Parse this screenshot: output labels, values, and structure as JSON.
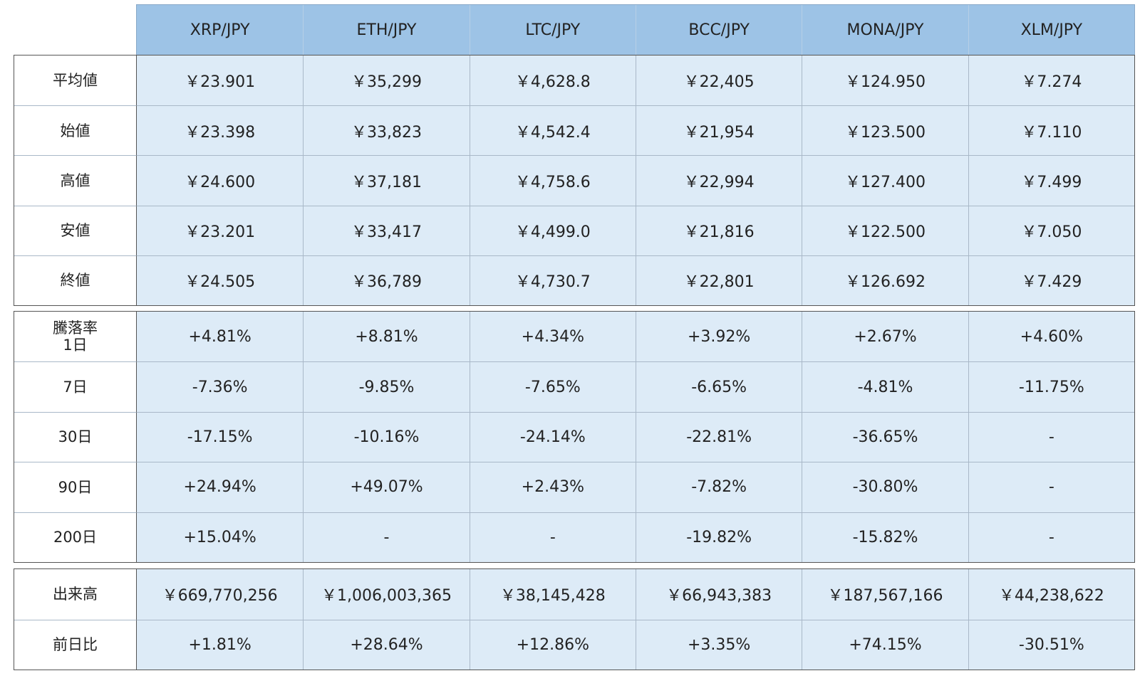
{
  "columns": [
    "XRP/JPY",
    "ETH/JPY",
    "LTC/JPY",
    "BCC/JPY",
    "MONA/JPY",
    "XLM/JPY"
  ],
  "prices": [
    {
      "label": "平均値",
      "values": [
        "￥23.901",
        "￥35,299",
        "￥4,628.8",
        "￥22,405",
        "￥124.950",
        "￥7.274"
      ]
    },
    {
      "label": "始値",
      "values": [
        "￥23.398",
        "￥33,823",
        "￥4,542.4",
        "￥21,954",
        "￥123.500",
        "￥7.110"
      ]
    },
    {
      "label": "高値",
      "values": [
        "￥24.600",
        "￥37,181",
        "￥4,758.6",
        "￥22,994",
        "￥127.400",
        "￥7.499"
      ]
    },
    {
      "label": "安値",
      "values": [
        "￥23.201",
        "￥33,417",
        "￥4,499.0",
        "￥21,816",
        "￥122.500",
        "￥7.050"
      ]
    },
    {
      "label": "終値",
      "values": [
        "￥24.505",
        "￥36,789",
        "￥4,730.7",
        "￥22,801",
        "￥126.692",
        "￥7.429"
      ]
    }
  ],
  "changes": [
    {
      "label": "騰落率\n1日",
      "values": [
        "+4.81%",
        "+8.81%",
        "+4.34%",
        "+3.92%",
        "+2.67%",
        "+4.60%"
      ]
    },
    {
      "label": "7日",
      "values": [
        "-7.36%",
        "-9.85%",
        "-7.65%",
        "-6.65%",
        "-4.81%",
        "-11.75%"
      ]
    },
    {
      "label": "30日",
      "values": [
        "-17.15%",
        "-10.16%",
        "-24.14%",
        "-22.81%",
        "-36.65%",
        "-"
      ]
    },
    {
      "label": "90日",
      "values": [
        "+24.94%",
        "+49.07%",
        "+2.43%",
        "-7.82%",
        "-30.80%",
        "-"
      ]
    },
    {
      "label": "200日",
      "values": [
        "+15.04%",
        "-",
        "-",
        "-19.82%",
        "-15.82%",
        "-"
      ]
    }
  ],
  "volume": [
    {
      "label": "出来高",
      "values": [
        "￥669,770,256",
        "￥1,006,003,365",
        "￥38,145,428",
        "￥66,943,383",
        "￥187,567,166",
        "￥44,238,622"
      ]
    },
    {
      "label": "前日比",
      "values": [
        "+1.81%",
        "+28.64%",
        "+12.86%",
        "+3.35%",
        "+74.15%",
        "-30.51%"
      ]
    }
  ]
}
